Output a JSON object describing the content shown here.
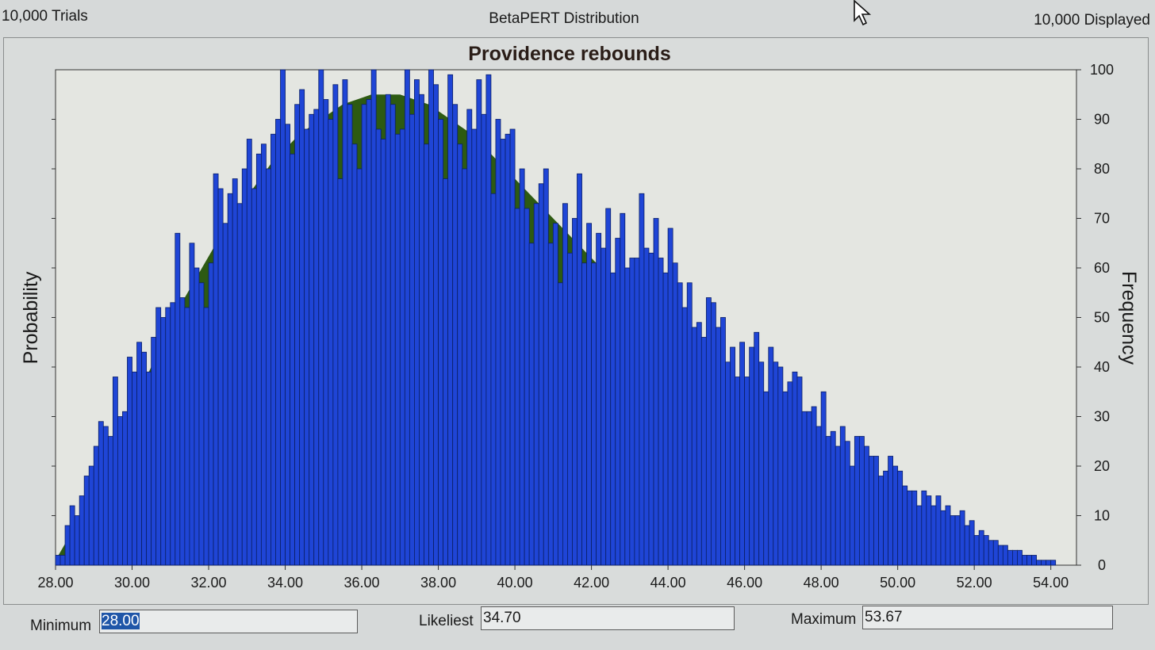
{
  "header": {
    "trials": "10,000 Trials",
    "distribution": "BetaPERT Distribution",
    "displayed": "10,000 Displayed"
  },
  "parameters": {
    "minimum_label": "Minimum",
    "minimum_value": "28.00",
    "likeliest_label": "Likeliest",
    "likeliest_value": "34.70",
    "maximum_label": "Maximum",
    "maximum_value": "53.67"
  },
  "colors": {
    "bar_fill": "#1f45d6",
    "bar_stroke": "#0a1f66",
    "curve_fill": "#2d5a12",
    "plot_bg": "#e4e6e1"
  },
  "chart_data": {
    "type": "bar",
    "title": "Providence rebounds",
    "xlabel": "",
    "ylabel_left": "Probability",
    "ylabel_right": "Frequency",
    "x_range": [
      28.0,
      54.67
    ],
    "y_range": [
      0,
      100
    ],
    "x_ticks": [
      "28.00",
      "30.00",
      "32.00",
      "34.00",
      "36.00",
      "38.00",
      "40.00",
      "42.00",
      "44.00",
      "46.00",
      "48.00",
      "50.00",
      "52.00",
      "54.00"
    ],
    "x_tick_values": [
      28,
      30,
      32,
      34,
      36,
      38,
      40,
      42,
      44,
      46,
      48,
      50,
      52,
      54
    ],
    "y_ticks": [
      "0",
      "10",
      "20",
      "30",
      "40",
      "50",
      "60",
      "70",
      "80",
      "90",
      "100"
    ],
    "y_tick_values": [
      0,
      10,
      20,
      30,
      40,
      50,
      60,
      70,
      80,
      90,
      100
    ],
    "bin_start": 28.0,
    "bin_width": 0.125,
    "frequencies": [
      2,
      2,
      8,
      12,
      10,
      14,
      18,
      20,
      24,
      29,
      28,
      26,
      38,
      30,
      31,
      42,
      39,
      45,
      43,
      39,
      46,
      52,
      50,
      52,
      53,
      67,
      54,
      52,
      65,
      60,
      57,
      52,
      61,
      79,
      76,
      69,
      75,
      78,
      73,
      80,
      86,
      76,
      83,
      85,
      80,
      87,
      90,
      100,
      89,
      83,
      93,
      96,
      88,
      91,
      92,
      100,
      94,
      90,
      97,
      78,
      98,
      93,
      85,
      80,
      93,
      94,
      100,
      88,
      86,
      95,
      93,
      87,
      88,
      100,
      91,
      98,
      95,
      85,
      100,
      97,
      90,
      78,
      99,
      93,
      85,
      80,
      92,
      88,
      98,
      91,
      99,
      75,
      90,
      86,
      87,
      88,
      72,
      80,
      72,
      65,
      73,
      77,
      80,
      65,
      69,
      57,
      73,
      63,
      70,
      79,
      61,
      69,
      61,
      67,
      64,
      72,
      59,
      66,
      71,
      60,
      62,
      62,
      75,
      64,
      63,
      70,
      62,
      59,
      68,
      61,
      57,
      52,
      57,
      48,
      49,
      46,
      54,
      53,
      48,
      50,
      41,
      44,
      38,
      45,
      38,
      44,
      47,
      41,
      35,
      44,
      41,
      40,
      35,
      37,
      39,
      38,
      31,
      31,
      32,
      28,
      35,
      26,
      27,
      24,
      28,
      25,
      20,
      26,
      26,
      24,
      22,
      22,
      18,
      19,
      22,
      20,
      19,
      16,
      15,
      15,
      12,
      15,
      14,
      12,
      14,
      11,
      12,
      10,
      10,
      11,
      8,
      9,
      6,
      7,
      6,
      5,
      5,
      4,
      4,
      3,
      3,
      3,
      2,
      2,
      2,
      1,
      1,
      1,
      1
    ],
    "density_curve_y": [
      1,
      6,
      12,
      18,
      24,
      30,
      36,
      42,
      48,
      54,
      59,
      64,
      69,
      73,
      77,
      81,
      84,
      87,
      89,
      91,
      93,
      94,
      95,
      95,
      95,
      94,
      93,
      91,
      89,
      87,
      84,
      81,
      78,
      75,
      72,
      69,
      66,
      63,
      60,
      56,
      53,
      50,
      47,
      44,
      41,
      38,
      35,
      33,
      30,
      27,
      25,
      23,
      21,
      18,
      16,
      14,
      12,
      10,
      9,
      8,
      6,
      5,
      4,
      3,
      2,
      2,
      1,
      1,
      0,
      0
    ],
    "density_curve_x_step": 0.375
  }
}
